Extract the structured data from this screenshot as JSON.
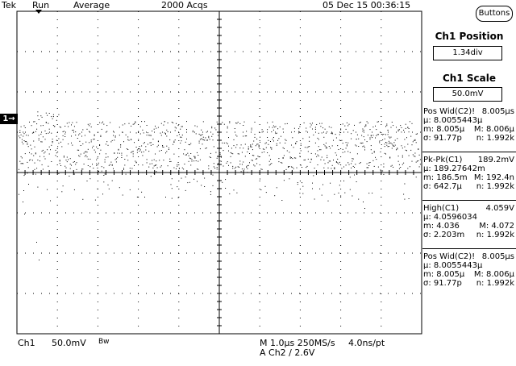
{
  "header": {
    "brand": "Tek",
    "run_state": "Run",
    "mode": "Average",
    "acqs": "2000 Acqs",
    "datetime": "05 Dec 15 00:36:15",
    "buttons_label": "Buttons"
  },
  "side": {
    "position_title": "Ch1 Position",
    "position_value": "1.34div",
    "scale_title": "Ch1 Scale",
    "scale_value": "50.0mV"
  },
  "measurements": [
    {
      "name": "Pos Wid(C2)!",
      "value": "8.005μs",
      "mu": "μ: 8.0055443μ",
      "m": "m: 8.005μ",
      "M": "M: 8.006μ",
      "sigma": "σ: 91.77p",
      "n": "n: 1.992k"
    },
    {
      "name": "Pk-Pk(C1)",
      "value": "189.2mV",
      "mu": "μ: 189.27642m",
      "m": "m: 186.5m",
      "M": "M: 192.4n",
      "sigma": "σ: 642.7μ",
      "n": "n: 1.992k"
    },
    {
      "name": "High(C1)",
      "value": "4.059V",
      "mu": "μ: 4.0596034",
      "m": "m: 4.036",
      "M": "M: 4.072",
      "sigma": "σ: 2.203m",
      "n": "n: 1.992k"
    },
    {
      "name": "Pos Wid(C2)!",
      "value": "8.005μs",
      "mu": "μ: 8.0055443μ",
      "m": "m: 8.005μ",
      "M": "M: 8.006μ",
      "sigma": "σ: 91.77p",
      "n": "n: 1.992k"
    }
  ],
  "channel_marker": "1→",
  "footer": {
    "channel": "Ch1",
    "scale": "50.0mV",
    "bw": "Bw",
    "timebase": "M 1.0μs 250MS/s",
    "resolution": "4.0ns/pt",
    "trigger": "A  Ch2  ∕  2.6V"
  },
  "trace_color": "#000000"
}
